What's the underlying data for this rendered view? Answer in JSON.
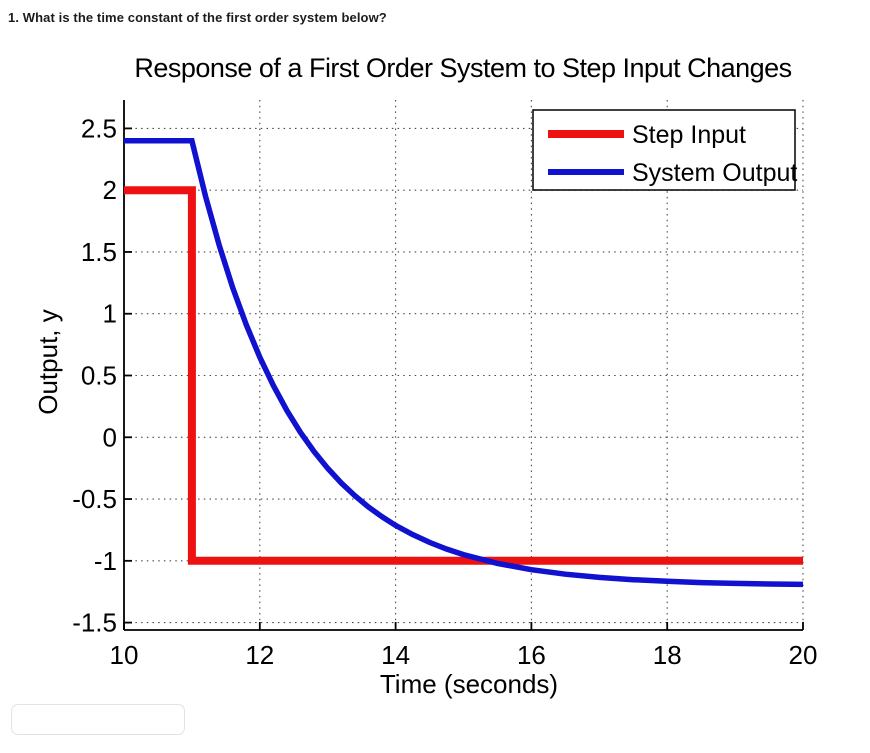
{
  "question": {
    "text": "1. What is the time constant of the first order system below?"
  },
  "answer_input": {
    "value": "",
    "placeholder": ""
  },
  "chart_data": {
    "type": "line",
    "title": "Response of a First Order System to Step Input Changes",
    "xlabel": "Time (seconds)",
    "ylabel": "Output, y",
    "xlim": [
      10,
      20
    ],
    "ylim": [
      -1.56,
      2.73
    ],
    "xticks": [
      10,
      12,
      14,
      16,
      18,
      20
    ],
    "yticks": [
      2.5,
      2,
      1.5,
      1,
      0.5,
      0,
      -0.5,
      -1,
      -1.5
    ],
    "grid": true,
    "grid_style": "dotted",
    "legend": {
      "position": "top-right",
      "entries": [
        {
          "label": "Step Input",
          "color": "#ee1111"
        },
        {
          "label": "System Output",
          "color": "#1111d0"
        }
      ]
    },
    "series": [
      {
        "name": "Step Input",
        "color": "#ee1111",
        "width": 8,
        "points": [
          [
            10,
            2
          ],
          [
            11,
            2
          ],
          [
            11,
            -1
          ],
          [
            20,
            -1
          ]
        ]
      },
      {
        "name": "System Output",
        "color": "#1111d0",
        "width": 5.5,
        "points": [
          [
            10,
            2.4
          ],
          [
            11,
            2.4
          ],
          [
            11.2,
            1.951
          ],
          [
            11.4,
            1.557
          ],
          [
            11.6,
            1.213
          ],
          [
            11.8,
            0.912
          ],
          [
            12,
            0.648
          ],
          [
            12.2,
            0.418
          ],
          [
            12.4,
            0.215
          ],
          [
            12.6,
            0.039
          ],
          [
            12.8,
            -0.116
          ],
          [
            13,
            -0.251
          ],
          [
            13.2,
            -0.37
          ],
          [
            13.4,
            -0.473
          ],
          [
            13.6,
            -0.564
          ],
          [
            13.8,
            -0.643
          ],
          [
            14,
            -0.713
          ],
          [
            14.25,
            -0.787
          ],
          [
            14.5,
            -0.851
          ],
          [
            14.75,
            -0.904
          ],
          [
            15,
            -0.95
          ],
          [
            15.5,
            -1.021
          ],
          [
            16,
            -1.072
          ],
          [
            16.5,
            -1.108
          ],
          [
            17,
            -1.134
          ],
          [
            17.5,
            -1.153
          ],
          [
            18,
            -1.166
          ],
          [
            18.5,
            -1.176
          ],
          [
            19,
            -1.183
          ],
          [
            19.5,
            -1.188
          ],
          [
            20,
            -1.191
          ]
        ]
      }
    ]
  }
}
